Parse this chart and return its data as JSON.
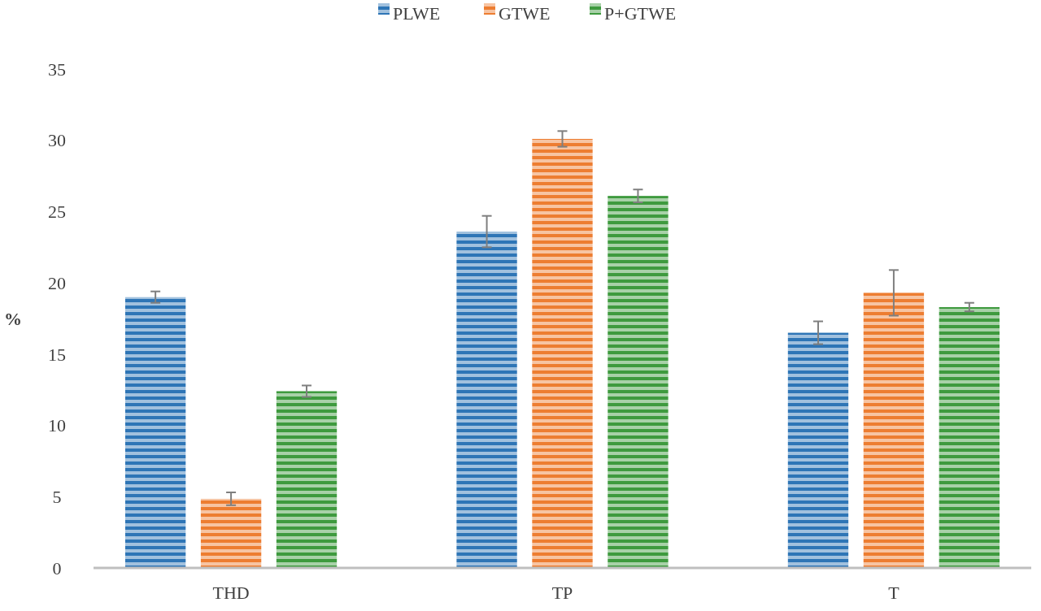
{
  "chart_data": {
    "type": "bar",
    "categories": [
      "THD",
      "TP",
      "T"
    ],
    "ylabel": "%",
    "ylim": [
      0,
      35
    ],
    "yticks": [
      0,
      5,
      10,
      15,
      20,
      25,
      30,
      35
    ],
    "grid": false,
    "legend": "top",
    "series": [
      {
        "name": "PLWE",
        "color": "#2e75b6",
        "values": [
          19.0,
          23.6,
          16.5
        ],
        "errors": [
          0.4,
          1.1,
          0.8
        ]
      },
      {
        "name": "GTWE",
        "color": "#ed7d31",
        "values": [
          4.85,
          30.1,
          19.3
        ],
        "errors": [
          0.45,
          0.55,
          1.6
        ]
      },
      {
        "name": "P+GTWE",
        "color": "#3e9a3e",
        "values": [
          12.4,
          26.1,
          18.3
        ],
        "errors": [
          0.4,
          0.45,
          0.3
        ]
      }
    ]
  }
}
